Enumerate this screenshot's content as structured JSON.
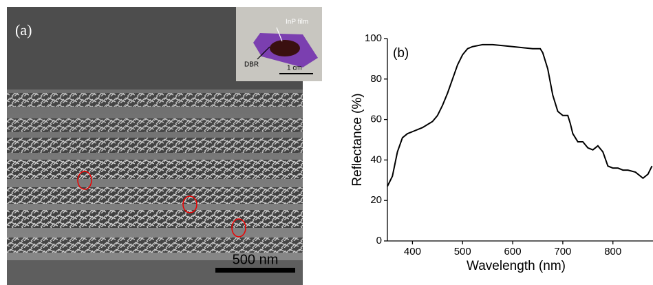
{
  "panel_a": {
    "label": "(a)",
    "inset_film": "InP film",
    "inset_dbr": "DBR",
    "inset_scale": "1 cm",
    "scale_bar": "500 nm"
  },
  "chart_data": {
    "type": "line",
    "label": "(b)",
    "xlabel": "Wavelength (nm)",
    "ylabel": "Reflectance (%)",
    "color": "#000000",
    "x": [
      350,
      360,
      370,
      380,
      390,
      400,
      420,
      440,
      450,
      460,
      470,
      480,
      490,
      500,
      510,
      520,
      540,
      560,
      580,
      600,
      620,
      640,
      655,
      660,
      670,
      680,
      690,
      700,
      710,
      715,
      720,
      730,
      740,
      750,
      760,
      770,
      780,
      790,
      800,
      810,
      820,
      830,
      845,
      860,
      870,
      878
    ],
    "values": [
      27,
      32,
      44,
      51,
      53,
      54,
      56,
      59,
      62,
      67,
      73,
      80,
      87,
      92,
      95,
      96,
      97,
      97,
      96.5,
      96,
      95.5,
      95,
      95,
      93,
      85,
      72,
      64,
      62,
      62,
      58,
      53,
      49,
      49,
      46,
      45,
      47,
      44,
      37,
      36,
      36,
      35,
      35,
      34,
      31,
      33,
      37
    ],
    "xlim": [
      350,
      880
    ],
    "ylim": [
      0,
      100
    ],
    "xticks": [
      400,
      500,
      600,
      700,
      800
    ],
    "yticks": [
      0,
      20,
      40,
      60,
      80,
      100
    ]
  }
}
